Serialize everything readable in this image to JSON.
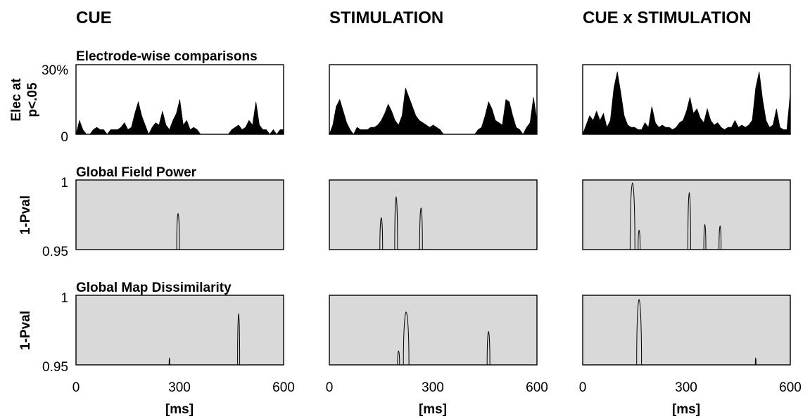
{
  "columns": [
    "CUE",
    "STIMULATION",
    "CUE x STIMULATION"
  ],
  "rows": {
    "electrode": {
      "title": "Electrode-wise comparisons",
      "ylabel_line1": "Elec at",
      "ylabel_line2": "p<.05",
      "ytick_top": "30%",
      "ytick_bottom": "0"
    },
    "gfp": {
      "title": "Global Field Power",
      "ylabel": "1-Pval",
      "ytick_top": "1",
      "ytick_bottom": "0.95"
    },
    "gmd": {
      "title": "Global Map Dissimilarity",
      "ylabel": "1-Pval",
      "ytick_top": "1",
      "ytick_bottom": "0.95"
    }
  },
  "xticks": [
    "0",
    "300",
    "600"
  ],
  "xlabel": "[ms]",
  "colors": {
    "panel_bg": "#d9d9d9",
    "fill": "#000000",
    "line": "#000000"
  },
  "chart_data": [
    {
      "type": "area",
      "row": "electrode",
      "column": "CUE",
      "xlim": [
        0,
        600
      ],
      "ylim": [
        0,
        30
      ],
      "x": [
        0,
        10,
        20,
        30,
        40,
        50,
        60,
        70,
        80,
        90,
        100,
        110,
        120,
        130,
        140,
        150,
        160,
        170,
        180,
        190,
        200,
        210,
        220,
        230,
        240,
        250,
        260,
        270,
        280,
        290,
        300,
        310,
        320,
        330,
        340,
        350,
        360,
        370,
        380,
        390,
        400,
        410,
        420,
        430,
        440,
        450,
        460,
        470,
        480,
        490,
        500,
        510,
        520,
        530,
        540,
        550,
        560,
        570,
        580,
        590,
        600
      ],
      "y": [
        0,
        6,
        2,
        0,
        0,
        2,
        3,
        2,
        2,
        0,
        2,
        2,
        2,
        3,
        5,
        2,
        3,
        9,
        14,
        8,
        4,
        0,
        3,
        5,
        4,
        10,
        4,
        2,
        6,
        9,
        15,
        4,
        6,
        2,
        3,
        2,
        0,
        0,
        0,
        0,
        0,
        0,
        0,
        0,
        0,
        2,
        3,
        4,
        2,
        3,
        6,
        4,
        14,
        4,
        2,
        2,
        0,
        2,
        0,
        2,
        2
      ]
    },
    {
      "type": "area",
      "row": "electrode",
      "column": "STIMULATION",
      "xlim": [
        0,
        600
      ],
      "ylim": [
        0,
        30
      ],
      "x": [
        0,
        10,
        20,
        30,
        40,
        50,
        60,
        70,
        80,
        90,
        100,
        110,
        120,
        130,
        140,
        150,
        160,
        170,
        180,
        190,
        200,
        210,
        220,
        230,
        240,
        250,
        260,
        270,
        280,
        290,
        300,
        310,
        320,
        330,
        340,
        350,
        360,
        370,
        380,
        390,
        400,
        410,
        420,
        430,
        440,
        450,
        460,
        470,
        480,
        490,
        500,
        510,
        520,
        530,
        540,
        550,
        560,
        570,
        580,
        590,
        600
      ],
      "y": [
        0,
        4,
        12,
        15,
        10,
        5,
        2,
        0,
        3,
        2,
        2,
        2,
        3,
        3,
        4,
        6,
        9,
        13,
        10,
        6,
        4,
        8,
        20,
        16,
        12,
        8,
        6,
        5,
        4,
        3,
        4,
        3,
        2,
        0,
        0,
        0,
        0,
        0,
        0,
        0,
        0,
        0,
        0,
        2,
        3,
        8,
        14,
        11,
        6,
        5,
        4,
        15,
        14,
        8,
        3,
        2,
        0,
        3,
        5,
        16,
        6
      ]
    },
    {
      "type": "area",
      "row": "electrode",
      "column": "CUE x STIMULATION",
      "xlim": [
        0,
        600
      ],
      "ylim": [
        0,
        30
      ],
      "x": [
        0,
        10,
        20,
        30,
        40,
        50,
        60,
        70,
        80,
        90,
        100,
        110,
        120,
        130,
        140,
        150,
        160,
        170,
        180,
        190,
        200,
        210,
        220,
        230,
        240,
        250,
        260,
        270,
        280,
        290,
        300,
        310,
        320,
        330,
        340,
        350,
        360,
        370,
        380,
        390,
        400,
        410,
        420,
        430,
        440,
        450,
        460,
        470,
        480,
        490,
        500,
        510,
        520,
        530,
        540,
        550,
        560,
        570,
        580,
        590,
        600
      ],
      "y": [
        0,
        4,
        8,
        6,
        10,
        6,
        9,
        3,
        6,
        20,
        27,
        18,
        8,
        4,
        3,
        3,
        2,
        2,
        5,
        3,
        12,
        5,
        3,
        4,
        3,
        3,
        2,
        3,
        5,
        6,
        10,
        16,
        9,
        11,
        7,
        5,
        11,
        6,
        4,
        5,
        3,
        2,
        3,
        3,
        6,
        3,
        4,
        3,
        4,
        6,
        20,
        27,
        15,
        6,
        3,
        4,
        11,
        3,
        2,
        2,
        18
      ]
    },
    {
      "type": "line",
      "row": "gfp",
      "column": "CUE",
      "xlim": [
        0,
        600
      ],
      "ylim": [
        0.95,
        1
      ],
      "significant_peaks": [
        {
          "center": 295,
          "halfwidth": 4,
          "peak": 0.976
        }
      ]
    },
    {
      "type": "line",
      "row": "gfp",
      "column": "STIMULATION",
      "xlim": [
        0,
        600
      ],
      "ylim": [
        0.95,
        1
      ],
      "significant_peaks": [
        {
          "center": 150,
          "halfwidth": 4,
          "peak": 0.973
        },
        {
          "center": 193,
          "halfwidth": 4,
          "peak": 0.988
        },
        {
          "center": 265,
          "halfwidth": 4,
          "peak": 0.98
        }
      ]
    },
    {
      "type": "line",
      "row": "gfp",
      "column": "CUE x STIMULATION",
      "xlim": [
        0,
        600
      ],
      "ylim": [
        0.95,
        1
      ],
      "significant_peaks": [
        {
          "center": 144,
          "halfwidth": 7,
          "peak": 0.998
        },
        {
          "center": 163,
          "halfwidth": 3,
          "peak": 0.964
        },
        {
          "center": 308,
          "halfwidth": 4,
          "peak": 0.991
        },
        {
          "center": 353,
          "halfwidth": 3,
          "peak": 0.968
        },
        {
          "center": 397,
          "halfwidth": 3,
          "peak": 0.967
        }
      ]
    },
    {
      "type": "line",
      "row": "gmd",
      "column": "CUE",
      "xlim": [
        0,
        600
      ],
      "ylim": [
        0.95,
        1
      ],
      "significant_peaks": [
        {
          "center": 270,
          "halfwidth": 1,
          "peak": 0.955
        },
        {
          "center": 470,
          "halfwidth": 3,
          "peak": 0.987
        }
      ]
    },
    {
      "type": "line",
      "row": "gmd",
      "column": "STIMULATION",
      "xlim": [
        0,
        600
      ],
      "ylim": [
        0.95,
        1
      ],
      "significant_peaks": [
        {
          "center": 200,
          "halfwidth": 3,
          "peak": 0.96
        },
        {
          "center": 222,
          "halfwidth": 8,
          "peak": 0.988
        },
        {
          "center": 460,
          "halfwidth": 4,
          "peak": 0.974
        }
      ]
    },
    {
      "type": "line",
      "row": "gmd",
      "column": "CUE x STIMULATION",
      "xlim": [
        0,
        600
      ],
      "ylim": [
        0.95,
        1
      ],
      "significant_peaks": [
        {
          "center": 163,
          "halfwidth": 7,
          "peak": 0.997
        },
        {
          "center": 500,
          "halfwidth": 1,
          "peak": 0.955
        }
      ]
    }
  ]
}
